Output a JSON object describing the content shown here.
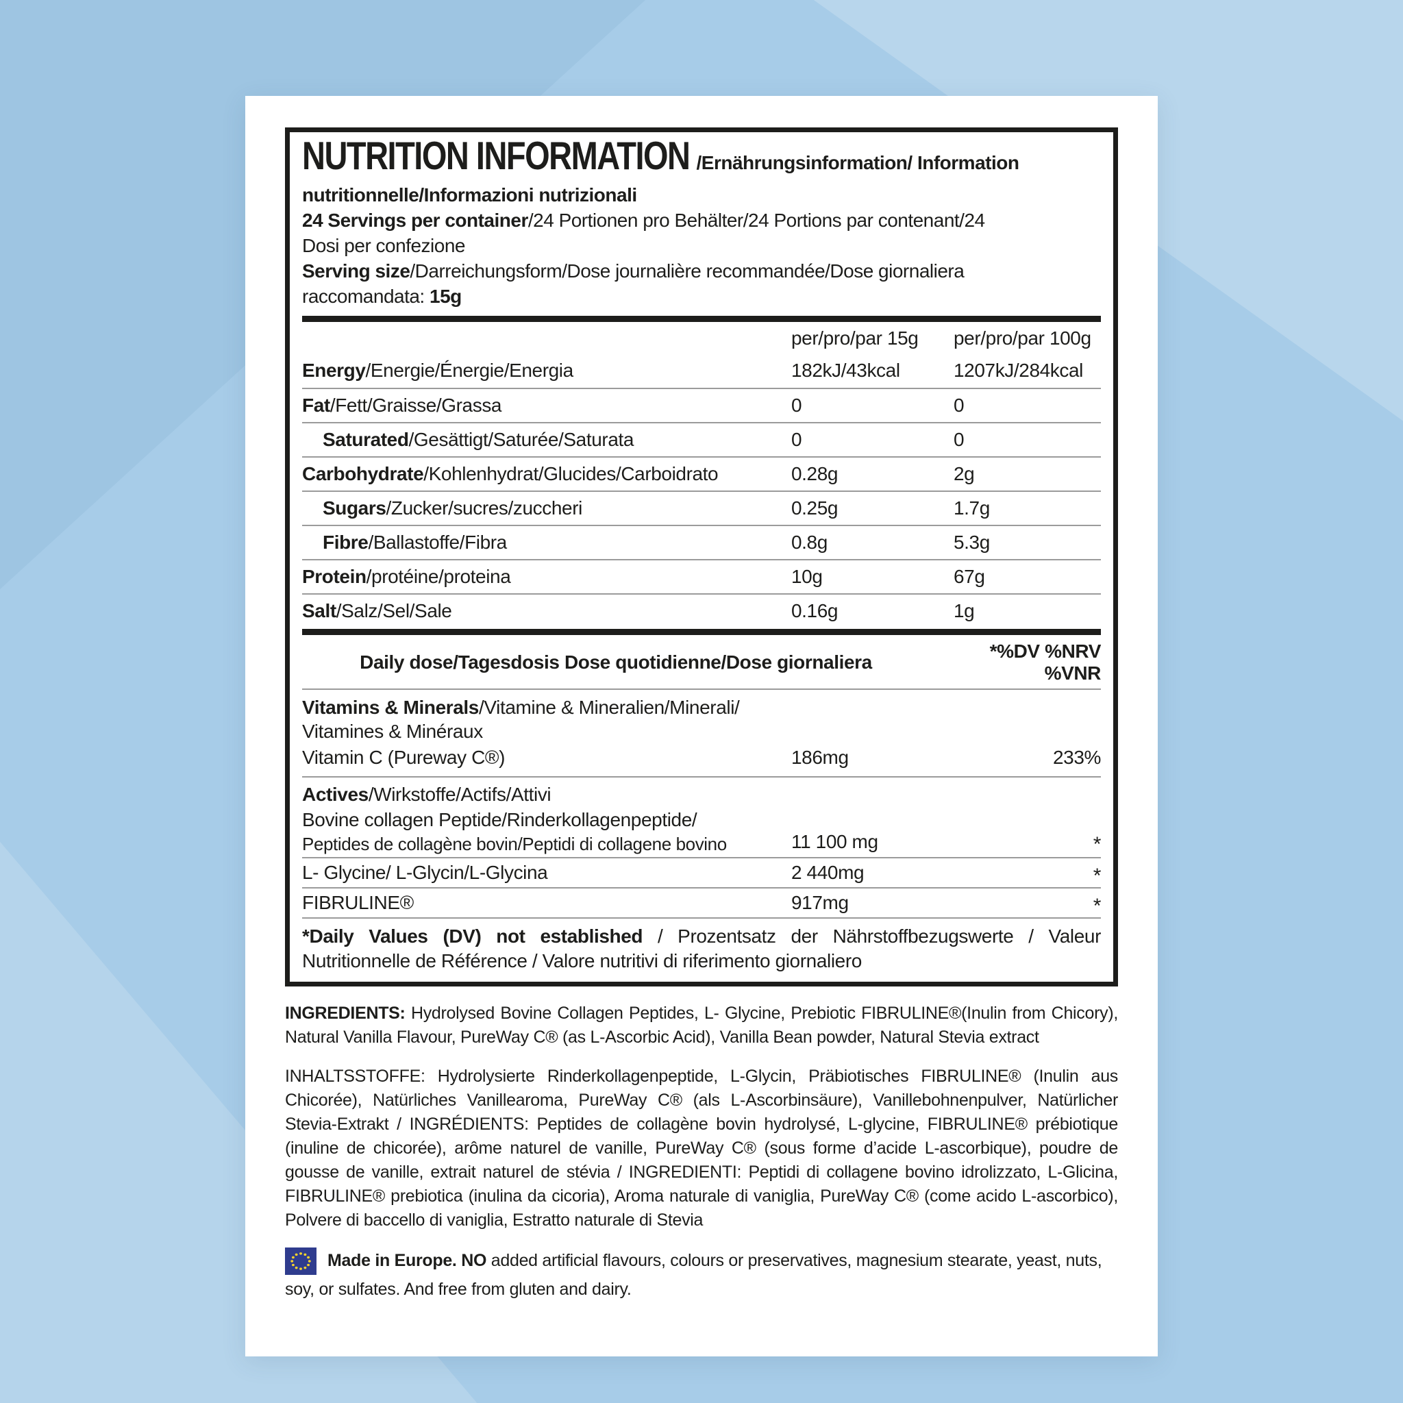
{
  "colors": {
    "background": "#a7cce8",
    "card": "#ffffff",
    "ink": "#1d1d1b",
    "separator": "#9b9b9b",
    "eu_flag_blue": "#2f3c8e",
    "eu_star_yellow": "#f6d32d"
  },
  "panel": {
    "title_en": "NUTRITION INFORMATION",
    "title_tail_line1": "/Ernährungsinformation/ Information",
    "title_tail_line2": "nutritionnelle/Informazioni nutrizionali",
    "servings_bold": "24 Servings per container",
    "servings_rest": "/24 Portionen pro Behälter/24 Portions par contenant/24",
    "servings_line2": "Dosi per confezione",
    "serving_size_bold": "Serving size",
    "serving_size_rest": "/Darreichungsform/Dose journalière recommandée/Dose giornaliera",
    "serving_size_line2": "raccomandata: ",
    "serving_size_value": "15g"
  },
  "table": {
    "col1_header": "per/pro/par 15g",
    "col2_header": "per/pro/par 100g",
    "rows": [
      {
        "bold": "Energy",
        "rest": "/Energie/Énergie/Energia",
        "indent": false,
        "per_15g": "182kJ/43kcal",
        "per_100g": "1207kJ/284kcal"
      },
      {
        "bold": "Fat",
        "rest": "/Fett/Graisse/Grassa",
        "indent": false,
        "per_15g": "0",
        "per_100g": "0"
      },
      {
        "bold": "Saturated",
        "rest": "/Gesättigt/Saturée/Saturata",
        "indent": true,
        "per_15g": "0",
        "per_100g": "0"
      },
      {
        "bold": "Carbohydrate",
        "rest": "/Kohlenhydrat/Glucides/Carboidrato",
        "indent": false,
        "per_15g": "0.28g",
        "per_100g": "2g"
      },
      {
        "bold": "Sugars",
        "rest": "/Zucker/sucres/zuccheri",
        "indent": true,
        "per_15g": "0.25g",
        "per_100g": "1.7g"
      },
      {
        "bold": "Fibre",
        "rest": "/Ballastoffe/Fibra",
        "indent": true,
        "per_15g": "0.8g",
        "per_100g": "5.3g"
      },
      {
        "bold": "Protein",
        "rest": "/protéine/proteina",
        "indent": false,
        "per_15g": "10g",
        "per_100g": "67g"
      },
      {
        "bold": "Salt",
        "rest": "/Salz/Sel/Sale",
        "indent": false,
        "per_15g": "0.16g",
        "per_100g": "1g"
      }
    ],
    "daily_dose_label": "Daily dose/Tagesdosis Dose quotidienne/Dose giornaliera",
    "daily_dose_right": "*%DV %NRV %VNR"
  },
  "vitamins": {
    "header_bold": "Vitamins & Minerals",
    "header_rest": "/Vitamine & Mineralien/Minerali/",
    "header_line2": "Vitamines & Minéraux",
    "vitamin_c": {
      "label": "Vitamin C (Pureway C®)",
      "amount": "186mg",
      "dv": "233%"
    }
  },
  "actives": {
    "header_bold": "Actives",
    "header_rest": "/Wirkstoffe/Actifs/Attivi",
    "rows": [
      {
        "label_line1": "Bovine collagen Peptide/Rinderkollagenpeptide/",
        "label_line2": "Peptides de collagène bovin/Peptidi di collagene bovino",
        "amount": "11 100 mg",
        "marker": "*"
      },
      {
        "label": "L- Glycine/ L-Glycin/L-Glycina",
        "amount": "2 440mg",
        "marker": "*"
      },
      {
        "label": "FIBRULINE®",
        "amount": "917mg",
        "marker": "*"
      }
    ]
  },
  "footnote": {
    "bold": "*Daily Values (DV) not established",
    "rest": " / Prozentsatz der Nährstoffbezugswerte / Valeur Nutritionnelle de Référence / Valore nutritivi di riferimento giornaliero"
  },
  "ingredients": {
    "en_bold": "INGREDIENTS:",
    "en_rest": " Hydrolysed Bovine Collagen Peptides, L- Glycine, Prebiotic FIBRULINE®(Inulin from Chicory), Natural Vanilla Flavour, PureWay C® (as L-Ascorbic Acid), Vanilla Bean powder, Natural Stevia extract",
    "multilang": "INHALTSSTOFFE: Hydrolysierte Rinderkollagenpeptide, L-Glycin, Präbiotisches FIBRULINE® (Inulin aus Chicorée), Natürliches Vanillearoma, PureWay C® (als L-Ascorbinsäure), Vanillebohnenpulver, Natürlicher Stevia-Extrakt / INGRÉDIENTS: Peptides de collagène bovin hydrolysé, L-glycine, FIBRULINE® prébiotique (inuline de chicorée), arôme naturel de vanille, PureWay C® (sous forme d’acide L-ascorbique), poudre de gousse de vanille, extrait naturel de stévia / INGREDIENTI: Peptidi di collagene bovino idrolizzato, L-Glicina, FIBRULINE® prebiotica (inulina da cicoria), Aroma naturale di vaniglia, PureWay C® (come acido L-ascorbico), Polvere di baccello di vaniglia, Estratto naturale di Stevia"
  },
  "made_in": {
    "flag_icon": "eu-flag",
    "bold": "Made in Europe. NO",
    "rest": " added artificial flavours, colours or preservatives, magnesium stearate, yeast, nuts, soy, or sulfates. And free from gluten and dairy."
  }
}
